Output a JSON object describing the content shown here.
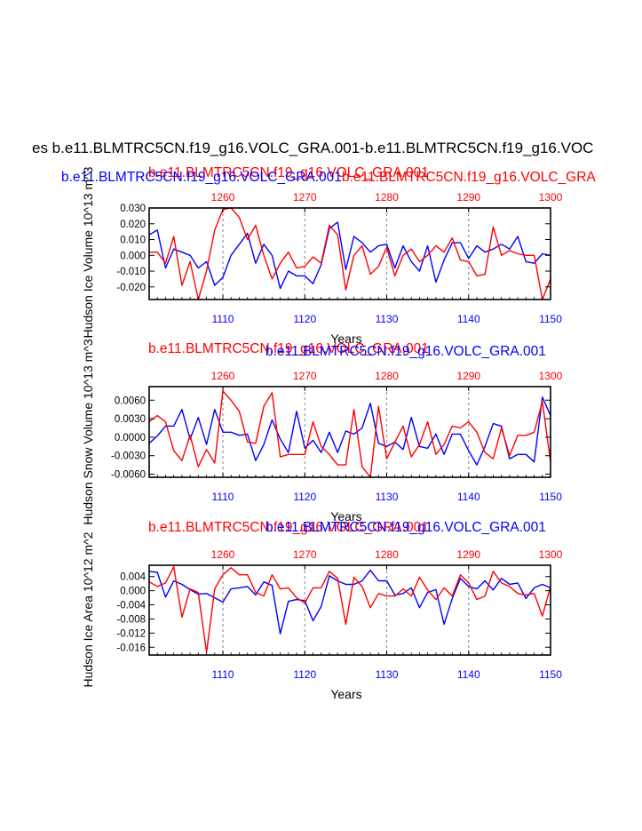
{
  "main_title": "es b.e11.BLMTRC5CN.f19_g16.VOLC_GRA.001-b.e11.BLMTRC5CN.f19_g16.VOC",
  "overlap_title": {
    "red": "b.e11.BLMTRC5CN.f19_g16.VOLC_GRA.001",
    "blue": "b.e11.BLMTRC5CN.f19_g16.VOLC_GRA.001",
    "red_extra": "b.e11.BLMTRC5CN.f19_g16.VOLC_GRA"
  },
  "colors": {
    "red_series": "#ff0000",
    "blue_series": "#0000ff",
    "grid": "#999999",
    "axis": "#000000"
  },
  "chart_data": [
    {
      "type": "line",
      "ylabel": "Hudson Ice Volume 10^13 m^3",
      "xlabel": "Years",
      "bottom_axis_ticks": [
        "1110",
        "1120",
        "1130",
        "1140",
        "1150"
      ],
      "top_axis_ticks": [
        "1260",
        "1270",
        "1280",
        "1290",
        "1300"
      ],
      "ylim": [
        -0.028,
        0.03
      ],
      "yticks": [
        0.03,
        0.02,
        0.01,
        0.0,
        -0.01,
        -0.02
      ],
      "ytick_labels": [
        "0.030",
        "0.020",
        "0.010",
        "0.000",
        "-0.010",
        "-0.020"
      ],
      "top_title_red": "b.e11.BLMTRC5CN.f19_g16.VOLC_GRA.001",
      "top_title_blue": "b.e11.BLMTRC5CN.f19_g16.VOLC_GRA.001",
      "series": [
        {
          "name": "b.e11.BLMTRC5CN.f19_g16.VOLC_GRA.001",
          "color": "blue",
          "x_range": [
            1101,
            1150
          ],
          "values": [
            0.013,
            0.016,
            -0.008,
            0.004,
            0.002,
            0.0,
            -0.008,
            -0.004,
            -0.019,
            -0.014,
            0.0,
            0.007,
            0.014,
            -0.005,
            0.007,
            0.0,
            -0.021,
            -0.01,
            -0.013,
            -0.013,
            -0.018,
            -0.006,
            0.017,
            0.021,
            -0.009,
            0.012,
            0.008,
            0.002,
            0.006,
            0.007,
            -0.008,
            0.006,
            -0.004,
            -0.01,
            0.006,
            -0.017,
            -0.003,
            0.008,
            0.008,
            -0.002,
            0.006,
            0.002,
            0.004,
            0.007,
            0.004,
            0.012,
            -0.004,
            -0.005,
            0.001,
            0.0
          ]
        },
        {
          "name": "b.e11.BLMTRC5CN.f19_g16.VOLC_GRA.001",
          "color": "red",
          "x_range": [
            1251,
            1300
          ],
          "values": [
            0.002,
            0.002,
            -0.005,
            0.012,
            -0.019,
            -0.004,
            -0.028,
            -0.01,
            0.016,
            0.029,
            0.03,
            0.024,
            0.01,
            0.019,
            0.0,
            -0.015,
            -0.005,
            0.002,
            -0.008,
            -0.007,
            -0.001,
            -0.005,
            0.019,
            0.013,
            -0.022,
            0.0,
            0.006,
            -0.012,
            -0.007,
            0.005,
            -0.013,
            0.0,
            0.004,
            -0.004,
            0.0,
            0.006,
            0.002,
            0.011,
            -0.003,
            -0.004,
            -0.013,
            -0.012,
            0.018,
            0.0,
            0.003,
            0.001,
            0.0,
            0.0,
            -0.028,
            -0.015
          ]
        }
      ]
    },
    {
      "type": "line",
      "ylabel": "Hudson Snow Volume 10^13 m^3",
      "xlabel": "Years",
      "bottom_axis_ticks": [
        "1110",
        "1120",
        "1130",
        "1140",
        "1150"
      ],
      "top_axis_ticks": [
        "1260",
        "1270",
        "1280",
        "1290",
        "1300"
      ],
      "ylim": [
        -0.0065,
        0.0082
      ],
      "yticks": [
        0.006,
        0.003,
        0.0,
        -0.003,
        -0.006
      ],
      "ytick_labels": [
        "0.0060",
        "0.0030",
        "0.0000",
        "-0.0030",
        "-0.0060"
      ],
      "top_title_red": "b.e11.BLMTRC5CN.f19_g16.VOLC_GRA.001",
      "top_title_blue": "b.e11.BLMTRC5CN.f19_g16.VOLC_GRA.001",
      "series": [
        {
          "name": "b.e11.BLMTRC5CN.f19_g16.VOLC_GRA.001",
          "color": "blue",
          "x_range": [
            1101,
            1150
          ],
          "values": [
            -0.001,
            0.0002,
            0.0018,
            0.0018,
            0.0045,
            -0.0003,
            0.0032,
            -0.0012,
            0.0045,
            0.0008,
            0.0008,
            0.0003,
            0.0005,
            -0.0038,
            -0.0012,
            0.0028,
            -0.0003,
            -0.0025,
            0.0042,
            -0.0018,
            -0.0005,
            -0.0025,
            0.0008,
            -0.0025,
            0.001,
            0.0005,
            0.0015,
            0.0055,
            -0.001,
            -0.0015,
            -0.0008,
            -0.002,
            0.0032,
            -0.0015,
            -0.0018,
            0.0005,
            -0.0028,
            0.0005,
            0.0005,
            -0.0022,
            -0.0045,
            -0.0015,
            0.0022,
            0.0018,
            -0.0035,
            -0.0028,
            -0.0028,
            -0.004,
            0.0065,
            0.0035
          ]
        },
        {
          "name": "b.e11.BLMTRC5CN.f19_g16.VOLC_GRA.001",
          "color": "red",
          "x_range": [
            1251,
            1300
          ],
          "values": [
            0.0025,
            0.0035,
            0.0025,
            -0.0022,
            -0.0038,
            0.0003,
            -0.0048,
            -0.002,
            -0.0042,
            0.0075,
            0.006,
            0.0042,
            -0.0008,
            -0.001,
            0.005,
            0.0072,
            -0.0032,
            -0.0028,
            -0.0028,
            -0.0028,
            0.0025,
            -0.0015,
            -0.0028,
            -0.0045,
            -0.0045,
            0.0045,
            -0.0048,
            -0.0065,
            0.005,
            -0.0035,
            -0.0008,
            0.0018,
            -0.0032,
            -0.0012,
            0.0025,
            -0.0028,
            -0.0012,
            0.0018,
            0.0015,
            0.0025,
            0.0008,
            -0.0025,
            -0.0035,
            0.0015,
            -0.003,
            0.0003,
            0.0003,
            0.0008,
            0.0058,
            -0.004
          ]
        }
      ]
    },
    {
      "type": "line",
      "ylabel": "Hudson Ice Area 10^12 m^2",
      "xlabel": "Years",
      "bottom_axis_ticks": [
        "1110",
        "1120",
        "1130",
        "1140",
        "1150"
      ],
      "top_axis_ticks": [
        "1260",
        "1270",
        "1280",
        "1290",
        "1300"
      ],
      "ylim": [
        -0.0182,
        0.0072
      ],
      "yticks": [
        0.004,
        0.0,
        -0.004,
        -0.008,
        -0.012,
        -0.016
      ],
      "ytick_labels": [
        "0.004",
        "0.000",
        "-0.004",
        "-0.008",
        "-0.012",
        "-0.016"
      ],
      "top_title_red": "b.e11.BLMTRC5CN.f19_g16.VOLC_GRA.001",
      "top_title_blue": "b.e11.BLMTRC5CN.f19_g16.VOLC_GRA.001",
      "series": [
        {
          "name": "b.e11.BLMTRC5CN.f19_g16.VOLC_GRA.001",
          "color": "blue",
          "x_range": [
            1101,
            1150
          ],
          "values": [
            0.0055,
            0.0052,
            -0.0018,
            0.0028,
            0.0018,
            0.0003,
            -0.001,
            -0.0008,
            -0.002,
            -0.0032,
            0.0005,
            0.0008,
            0.0012,
            -0.0012,
            0.0025,
            0.0015,
            -0.0122,
            -0.003,
            -0.0025,
            -0.0028,
            -0.0085,
            -0.0045,
            0.0042,
            0.0028,
            0.0018,
            0.0018,
            0.0028,
            0.0058,
            0.0028,
            0.0028,
            -0.0012,
            -0.0008,
            0.0008,
            -0.0048,
            -0.0005,
            0.0003,
            -0.0095,
            -0.0022,
            0.0035,
            0.0012,
            0.0005,
            0.0028,
            0.0002,
            0.0035,
            0.0018,
            0.0022,
            -0.0022,
            0.0008,
            0.0018,
            0.0008
          ]
        },
        {
          "name": "b.e11.BLMTRC5CN.f19_g16.VOLC_GRA.001",
          "color": "red",
          "x_range": [
            1251,
            1300
          ],
          "values": [
            0.0025,
            0.0012,
            0.0022,
            0.0068,
            -0.0075,
            0.0005,
            -0.0005,
            -0.0175,
            0.0005,
            0.0045,
            0.0065,
            0.0045,
            0.0045,
            -0.0005,
            -0.0015,
            0.0045,
            0.0005,
            0.0008,
            -0.002,
            -0.0035,
            0.0008,
            0.0008,
            0.0055,
            0.0035,
            -0.0095,
            0.0038,
            0.0012,
            -0.0048,
            -0.0008,
            -0.0015,
            -0.0015,
            0.0005,
            -0.0015,
            0.0038,
            0.0002,
            -0.0025,
            0.0008,
            -0.0015,
            0.0045,
            0.0022,
            -0.0025,
            -0.0015,
            0.0055,
            0.0022,
            0.0012,
            -0.0008,
            -0.0012,
            -0.0008,
            -0.0072,
            0.0012
          ]
        }
      ]
    }
  ]
}
